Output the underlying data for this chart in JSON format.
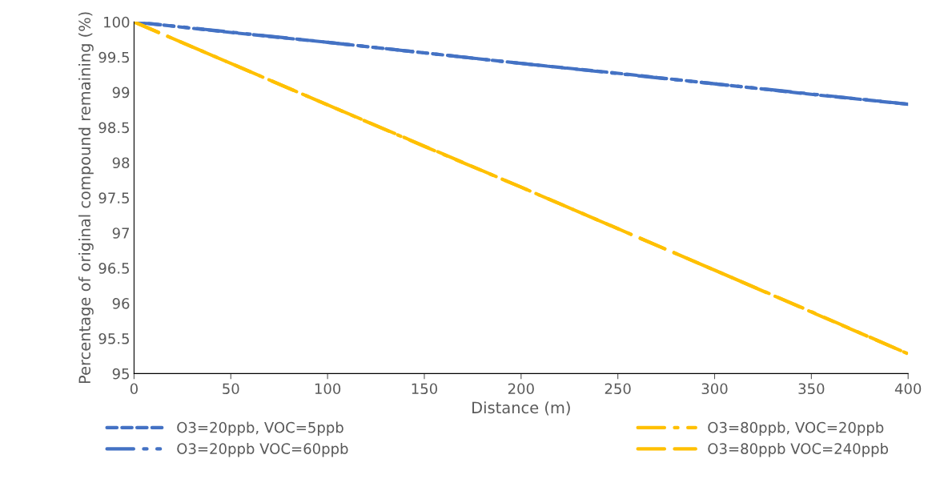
{
  "chart_data": {
    "type": "line",
    "xlabel": "Distance (m)",
    "ylabel": "Percentage of original compound remaining (%)",
    "x": [
      0,
      50,
      100,
      150,
      200,
      250,
      300,
      350,
      400
    ],
    "series": [
      {
        "name": "O3=20ppb, VOC=5ppb",
        "color": "#4472c4",
        "line_style": "dashed",
        "values": [
          100,
          99.85,
          99.71,
          99.56,
          99.41,
          99.27,
          99.12,
          98.97,
          98.83
        ]
      },
      {
        "name": "O3=20ppb VOC=60ppb",
        "color": "#4472c4",
        "line_style": "dashdotdot",
        "x": [
          0,
          100,
          200,
          300,
          400
        ],
        "values": [
          100,
          99.71,
          99.41,
          99.12,
          98.83
        ]
      },
      {
        "name": "O3=80ppb, VOC=20ppb",
        "color": "#ffc000",
        "line_style": "dashdot",
        "values": [
          100,
          99.41,
          98.82,
          98.23,
          97.65,
          97.06,
          96.47,
          95.88,
          95.28
        ]
      },
      {
        "name": "O3=80ppb VOC=240ppb",
        "color": "#ffc000",
        "line_style": "longdash",
        "x": [
          0,
          100,
          200,
          300,
          400
        ],
        "values": [
          100,
          98.82,
          97.65,
          96.47,
          95.28
        ]
      }
    ],
    "xlim": [
      0,
      400
    ],
    "xticks": [
      0,
      50,
      100,
      150,
      200,
      250,
      300,
      350,
      400
    ],
    "ylim": [
      95,
      100
    ],
    "yticks": [
      95,
      95.5,
      96,
      96.5,
      97,
      97.5,
      98,
      98.5,
      99,
      99.5,
      100
    ],
    "grid": false,
    "legend": "bottom",
    "marker": "none"
  }
}
